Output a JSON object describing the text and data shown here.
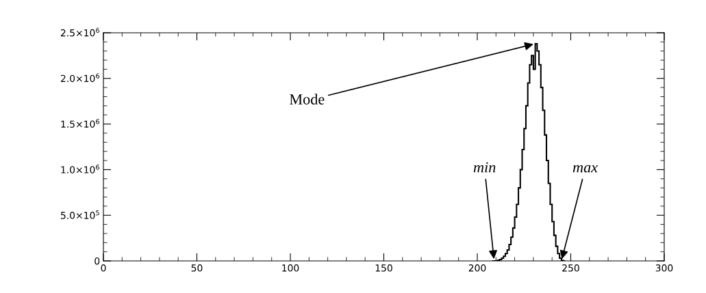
{
  "chart_data": {
    "type": "histogram",
    "bins": [
      208,
      209,
      210,
      211,
      212,
      213,
      214,
      215,
      216,
      217,
      218,
      219,
      220,
      221,
      222,
      223,
      224,
      225,
      226,
      227,
      228,
      229,
      230,
      231,
      232,
      233,
      234,
      235,
      236,
      237,
      238,
      239,
      240,
      241,
      242,
      243,
      244,
      245,
      246,
      247
    ],
    "values": [
      0,
      0,
      2000,
      8000,
      15000,
      30000,
      50000,
      80000,
      120000,
      180000,
      260000,
      360000,
      480000,
      620000,
      800000,
      1000000,
      1220000,
      1450000,
      1700000,
      1950000,
      2150000,
      2250000,
      2100000,
      2380000,
      2300000,
      2150000,
      1900000,
      1650000,
      1380000,
      1100000,
      850000,
      620000,
      430000,
      280000,
      160000,
      80000,
      30000,
      5000,
      0
    ],
    "color": "#000000",
    "xlim": [
      0,
      300
    ],
    "xticks": [
      0,
      50,
      100,
      150,
      200,
      250,
      300
    ],
    "ylim": [
      0,
      2500000
    ],
    "yticks": [
      {
        "value": 0,
        "label": "0"
      },
      {
        "value": 500000,
        "label": "5.0×10$^{5}$"
      },
      {
        "value": 1000000,
        "label": "1.0×10$^{6}$"
      },
      {
        "value": 1500000,
        "label": "1.5×10$^{6}$"
      },
      {
        "value": 2000000,
        "label": "2.0×10$^{6}$"
      },
      {
        "value": 2500000,
        "label": "2.5×10$^{6}$"
      }
    ],
    "grid": false,
    "annotations": [
      {
        "text": "Mode",
        "x": 231,
        "y": 2380000
      },
      {
        "text": "min",
        "x": 209,
        "y": 0
      },
      {
        "text": "max",
        "x": 245,
        "y": 0
      }
    ]
  }
}
